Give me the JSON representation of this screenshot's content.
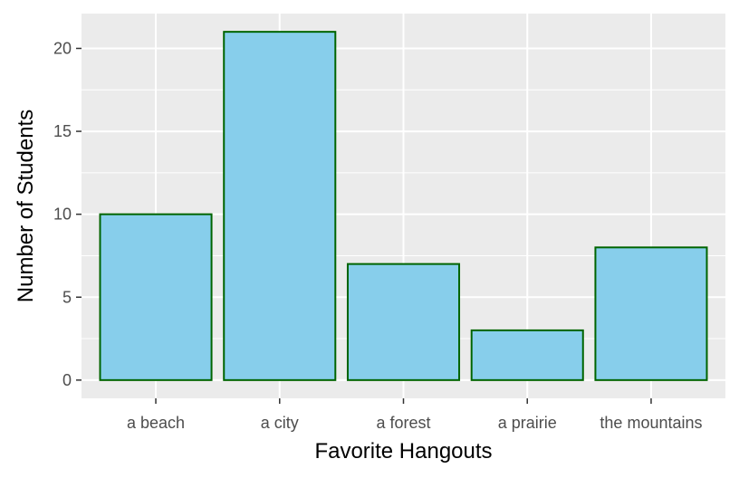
{
  "chart_data": {
    "type": "bar",
    "categories": [
      "a beach",
      "a city",
      "a forest",
      "a prairie",
      "the mountains"
    ],
    "values": [
      10,
      21,
      7,
      3,
      8
    ],
    "title": "",
    "xlabel": "Favorite Hangouts",
    "ylabel": "Number of Students",
    "ylim": [
      -1.1,
      22.1
    ],
    "yticks": [
      0,
      5,
      10,
      15,
      20
    ],
    "yticks_labels": [
      "0",
      "5",
      "10",
      "15",
      "20"
    ],
    "grid": true,
    "legend": "none",
    "colors": {
      "bar_fill": "#87CEEB",
      "bar_stroke": "#006400",
      "panel_background": "#EBEBEB",
      "grid": "#FFFFFF",
      "tick_text": "#4D4D4D",
      "tick_mark": "#333333"
    }
  }
}
